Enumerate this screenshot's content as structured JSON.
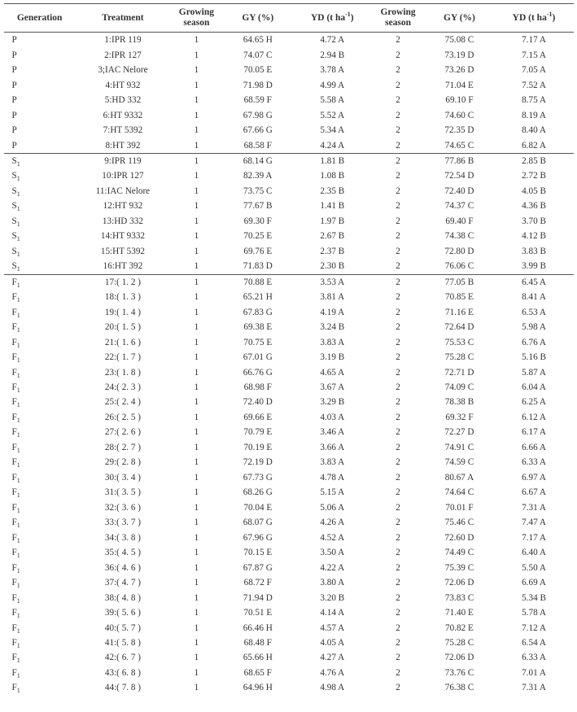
{
  "headers": {
    "generation": "Generation",
    "treatment": "Treatment",
    "growing_season": "Growing\nseason",
    "gy": "GY (%)",
    "yd": "YD (t ha",
    "yd_sup": "-1",
    "yd_close": ")"
  },
  "groups": [
    {
      "separator_after": false,
      "rows": [
        {
          "gen": "P",
          "treat": "1:IPR 119",
          "gs1": "1",
          "gy1": "64.65 H",
          "yd1": "4.72 A",
          "gs2": "2",
          "gy2": "75.08 C",
          "yd2": "7.17 A"
        },
        {
          "gen": "P",
          "treat": "2:IPR 127",
          "gs1": "1",
          "gy1": "74.07 C",
          "yd1": "2.94 B",
          "gs2": "2",
          "gy2": "73.19 D",
          "yd2": "7.15 A"
        },
        {
          "gen": "P",
          "treat": "3;IAC Nelore",
          "gs1": "1",
          "gy1": "70.05 E",
          "yd1": "3.78 A",
          "gs2": "2",
          "gy2": "73.26 D",
          "yd2": "7.05 A"
        },
        {
          "gen": "P",
          "treat": "4:HT 932",
          "gs1": "1",
          "gy1": "71.98 D",
          "yd1": "4.99 A",
          "gs2": "2",
          "gy2": "71.04 E",
          "yd2": "7.52 A"
        },
        {
          "gen": "P",
          "treat": "5:HD 332",
          "gs1": "1",
          "gy1": "68.59 F",
          "yd1": "5.58 A",
          "gs2": "2",
          "gy2": "69.10 F",
          "yd2": "8.75 A"
        },
        {
          "gen": "P",
          "treat": "6:HT 9332",
          "gs1": "1",
          "gy1": "67.98 G",
          "yd1": "5.52 A",
          "gs2": "2",
          "gy2": "74.60 C",
          "yd2": "8.19 A"
        },
        {
          "gen": "P",
          "treat": "7:HT 5392",
          "gs1": "1",
          "gy1": "67.66 G",
          "yd1": "5.34 A",
          "gs2": "2",
          "gy2": "72.35 D",
          "yd2": "8.40 A"
        },
        {
          "gen": "P",
          "treat": "8:HT 392",
          "gs1": "1",
          "gy1": "68.58 F",
          "yd1": "4.24 A",
          "gs2": "2",
          "gy2": "74.65 C",
          "yd2": "6.82 A"
        }
      ]
    },
    {
      "separator_after": true,
      "rows": [
        {
          "gen": "S",
          "sub": "1",
          "treat": "9:IPR 119",
          "gs1": "1",
          "gy1": "68.14 G",
          "yd1": "1.81 B",
          "gs2": "2",
          "gy2": "77.86 B",
          "yd2": "2.85 B"
        },
        {
          "gen": "S",
          "sub": "1",
          "treat": "10:IPR 127",
          "gs1": "1",
          "gy1": "82.39 A",
          "yd1": "1.08 B",
          "gs2": "2",
          "gy2": "72.54 D",
          "yd2": "2.72 B"
        },
        {
          "gen": "S",
          "sub": "1",
          "treat": "11:IAC Nelore",
          "gs1": "1",
          "gy1": "73.75 C",
          "yd1": "2.35 B",
          "gs2": "2",
          "gy2": "72.40 D",
          "yd2": "4.05 B"
        },
        {
          "gen": "S",
          "sub": "1",
          "treat": "12:HT 932",
          "gs1": "1",
          "gy1": "77.67 B",
          "yd1": "1.41 B",
          "gs2": "2",
          "gy2": "74.37 C",
          "yd2": "4.36 B"
        },
        {
          "gen": "S",
          "sub": "1",
          "treat": "13:HD 332",
          "gs1": "1",
          "gy1": "69.30 F",
          "yd1": "1.97 B",
          "gs2": "2",
          "gy2": "69.40 F",
          "yd2": "3.70 B"
        },
        {
          "gen": "S",
          "sub": "1",
          "treat": "14:HT 9332",
          "gs1": "1",
          "gy1": "70.25 E",
          "yd1": "2.67 B",
          "gs2": "2",
          "gy2": "74.38 C",
          "yd2": "4.12 B"
        },
        {
          "gen": "S",
          "sub": "1",
          "treat": "15:HT 5392",
          "gs1": "1",
          "gy1": "69.76 E",
          "yd1": "2.37 B",
          "gs2": "2",
          "gy2": "72.80 D",
          "yd2": "3.83 B"
        },
        {
          "gen": "S",
          "sub": "1",
          "treat": "16:HT 392",
          "gs1": "1",
          "gy1": "71.83 D",
          "yd1": "2.30 B",
          "gs2": "2",
          "gy2": "76.06 C",
          "yd2": "3.99 B"
        }
      ]
    },
    {
      "separator_after": false,
      "rows": [
        {
          "gen": "F",
          "sub": "1",
          "treat": "17:( 1. 2 )",
          "gs1": "1",
          "gy1": "70.88 E",
          "yd1": "3.53 A",
          "gs2": "2",
          "gy2": "77.05 B",
          "yd2": "6.45 A"
        },
        {
          "gen": "F",
          "sub": "1",
          "treat": "18:( 1. 3 )",
          "gs1": "1",
          "gy1": "65.21 H",
          "yd1": "3.81 A",
          "gs2": "2",
          "gy2": "70.85 E",
          "yd2": "8.41 A"
        },
        {
          "gen": "F",
          "sub": "1",
          "treat": "19:( 1. 4 )",
          "gs1": "1",
          "gy1": "67.83 G",
          "yd1": "4.19 A",
          "gs2": "2",
          "gy2": "71.16 E",
          "yd2": "6.53 A"
        },
        {
          "gen": "F",
          "sub": "1",
          "treat": "20:( 1. 5 )",
          "gs1": "1",
          "gy1": "69.38 E",
          "yd1": "3.24 B",
          "gs2": "2",
          "gy2": "72.64 D",
          "yd2": "5.98 A"
        },
        {
          "gen": "F",
          "sub": "1",
          "treat": "21:( 1. 6 )",
          "gs1": "1",
          "gy1": "70.75 E",
          "yd1": "3.83 A",
          "gs2": "2",
          "gy2": "75.53 C",
          "yd2": "6.76 A"
        },
        {
          "gen": "F",
          "sub": "1",
          "treat": "22:( 1. 7 )",
          "gs1": "1",
          "gy1": "67.01 G",
          "yd1": "3.19 B",
          "gs2": "2",
          "gy2": "75.28 C",
          "yd2": "5.16 B"
        },
        {
          "gen": "F",
          "sub": "1",
          "treat": "23:( 1. 8 )",
          "gs1": "1",
          "gy1": "66.76 G",
          "yd1": "4.65 A",
          "gs2": "2",
          "gy2": "72.71 D",
          "yd2": "5.87 A"
        },
        {
          "gen": "F",
          "sub": "1",
          "treat": "24:( 2. 3 )",
          "gs1": "1",
          "gy1": "68.98 F",
          "yd1": "3.67 A",
          "gs2": "2",
          "gy2": "74.09 C",
          "yd2": "6.04 A"
        },
        {
          "gen": "F",
          "sub": "1",
          "treat": "25:( 2. 4 )",
          "gs1": "1",
          "gy1": "72.40 D",
          "yd1": "3.29 B",
          "gs2": "2",
          "gy2": "78.38 B",
          "yd2": "6.25 A"
        },
        {
          "gen": "F",
          "sub": "1",
          "treat": "26:( 2. 5 )",
          "gs1": "1",
          "gy1": "69.66 E",
          "yd1": "4.03 A",
          "gs2": "2",
          "gy2": "69.32 F",
          "yd2": "6.12 A"
        },
        {
          "gen": "F",
          "sub": "1",
          "treat": "27:( 2. 6 )",
          "gs1": "1",
          "gy1": "70.79 E",
          "yd1": "3.46 A",
          "gs2": "2",
          "gy2": "72.27 D",
          "yd2": "6.17 A"
        },
        {
          "gen": "F",
          "sub": "1",
          "treat": "28:( 2. 7 )",
          "gs1": "1",
          "gy1": "70.19 E",
          "yd1": "3.66 A",
          "gs2": "2",
          "gy2": "74.91 C",
          "yd2": "6.66 A"
        },
        {
          "gen": "F",
          "sub": "1",
          "treat": "29:( 2. 8 )",
          "gs1": "1",
          "gy1": "72.19 D",
          "yd1": "3.83 A",
          "gs2": "2",
          "gy2": "74.59 C",
          "yd2": "6.33 A"
        },
        {
          "gen": "F",
          "sub": "1",
          "treat": "30:( 3. 4 )",
          "gs1": "1",
          "gy1": "67.73 G",
          "yd1": "4.78 A",
          "gs2": "2",
          "gy2": "80.67 A",
          "yd2": "6.97 A"
        },
        {
          "gen": "F",
          "sub": "1",
          "treat": "31:( 3. 5 )",
          "gs1": "1",
          "gy1": "68.26 G",
          "yd1": "5.15 A",
          "gs2": "2",
          "gy2": "74.64 C",
          "yd2": "6.67 A"
        },
        {
          "gen": "F",
          "sub": "1",
          "treat": "32:( 3. 6 )",
          "gs1": "1",
          "gy1": "70.04 E",
          "yd1": "5.06 A",
          "gs2": "2",
          "gy2": "70.01 F",
          "yd2": "7.31 A"
        },
        {
          "gen": "F",
          "sub": "1",
          "treat": "33:( 3. 7 )",
          "gs1": "1",
          "gy1": "68.07 G",
          "yd1": "4.26 A",
          "gs2": "2",
          "gy2": "75.46 C",
          "yd2": "7.47 A"
        },
        {
          "gen": "F",
          "sub": "1",
          "treat": "34:( 3. 8 )",
          "gs1": "1",
          "gy1": "67.96 G",
          "yd1": "4.52 A",
          "gs2": "2",
          "gy2": "72.60 D",
          "yd2": "7.17 A"
        },
        {
          "gen": "F",
          "sub": "1",
          "treat": "35:( 4. 5 )",
          "gs1": "1",
          "gy1": "70.15 E",
          "yd1": "3.50 A",
          "gs2": "2",
          "gy2": "74.49 C",
          "yd2": "6.40 A"
        },
        {
          "gen": "F",
          "sub": "1",
          "treat": "36:( 4. 6 )",
          "gs1": "1",
          "gy1": "67.87 G",
          "yd1": "4.22 A",
          "gs2": "2",
          "gy2": "75.39 C",
          "yd2": "5.50 A"
        },
        {
          "gen": "F",
          "sub": "1",
          "treat": "37:( 4. 7 )",
          "gs1": "1",
          "gy1": "68.72 F",
          "yd1": "3.80 A",
          "gs2": "2",
          "gy2": "72.06 D",
          "yd2": "6.69 A"
        },
        {
          "gen": "F",
          "sub": "1",
          "treat": "38:( 4. 8 )",
          "gs1": "1",
          "gy1": "71.94 D",
          "yd1": "3.20 B",
          "gs2": "2",
          "gy2": "73.83 C",
          "yd2": "5.34 B"
        },
        {
          "gen": "F",
          "sub": "1",
          "treat": "39:( 5. 6 )",
          "gs1": "1",
          "gy1": "70.51 E",
          "yd1": "4.14 A",
          "gs2": "2",
          "gy2": "71.40 E",
          "yd2": "5.78 A"
        },
        {
          "gen": "F",
          "sub": "1",
          "treat": "40:( 5. 7 )",
          "gs1": "1",
          "gy1": "66.46 H",
          "yd1": "4.57 A",
          "gs2": "2",
          "gy2": "70.82 E",
          "yd2": "7.12 A"
        },
        {
          "gen": "F",
          "sub": "1",
          "treat": "41:( 5. 8 )",
          "gs1": "1",
          "gy1": "68.48 F",
          "yd1": "4.05 A",
          "gs2": "2",
          "gy2": "75.28 C",
          "yd2": "6.54 A"
        },
        {
          "gen": "F",
          "sub": "1",
          "treat": "42:( 6. 7 )",
          "gs1": "1",
          "gy1": "65.66 H",
          "yd1": "4.27 A",
          "gs2": "2",
          "gy2": "72.06 D",
          "yd2": "6.33 A"
        },
        {
          "gen": "F",
          "sub": "1",
          "treat": "43:( 6. 8 )",
          "gs1": "1",
          "gy1": "68.65 F",
          "yd1": "4.76 A",
          "gs2": "2",
          "gy2": "73.76 C",
          "yd2": "7.01 A"
        },
        {
          "gen": "F",
          "sub": "1",
          "treat": "44:( 7. 8 )",
          "gs1": "1",
          "gy1": "64.96 H",
          "yd1": "4.98 A",
          "gs2": "2",
          "gy2": "76.38 C",
          "yd2": "7.31 A"
        }
      ]
    }
  ]
}
